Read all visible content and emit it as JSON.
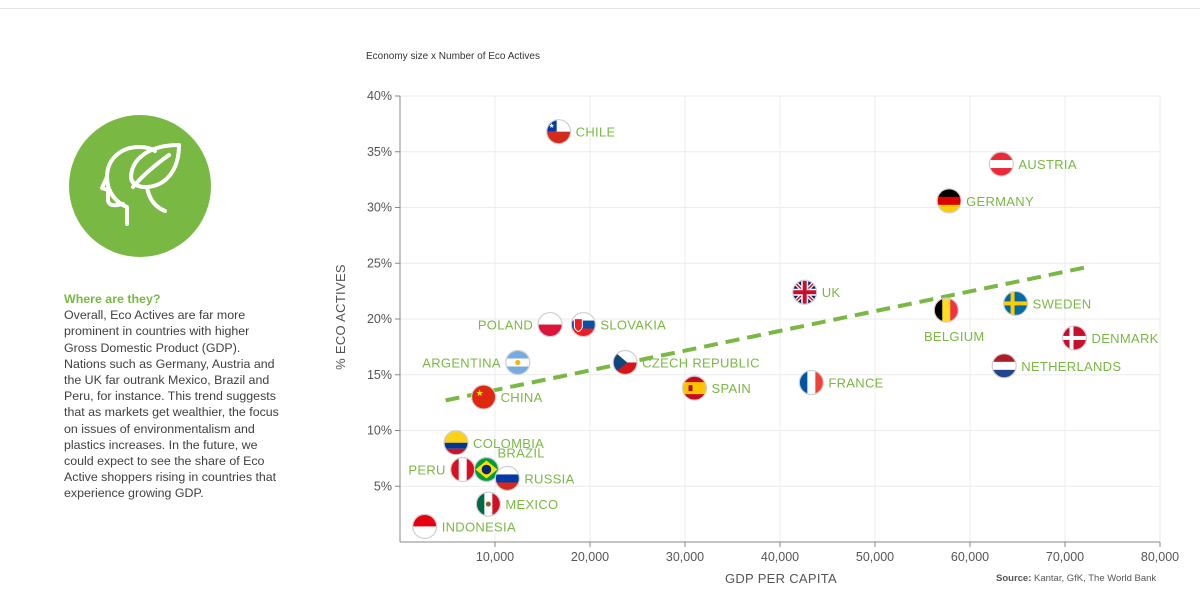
{
  "sidebar": {
    "heading": "Where are they?",
    "body": "Overall, Eco Actives are far more prominent in countries with higher Gross Domestic Product (GDP). Nations such as Germany, Austria and the UK far outrank Mexico, Brazil and Peru, for instance. This trend suggests that as markets get wealthier, the focus on issues of environmentalism and plastics increases. In the future, we could expect to see the share of Eco Active shoppers rising in countries that experience growing GDP.",
    "icon": "head-leaf-icon",
    "accent": "#7ab844"
  },
  "chart_subtitle": "Economy size x Number of Eco Actives",
  "source": {
    "prefix": "Source:",
    "text": " Kantar, GfK, The World Bank"
  },
  "chart_data": {
    "type": "scatter",
    "xlabel": "GDP PER CAPITA",
    "ylabel": "% ECO ACTIVES",
    "xlim": [
      0,
      80000
    ],
    "ylim": [
      0,
      40
    ],
    "xticks": [
      10000,
      20000,
      30000,
      40000,
      50000,
      60000,
      70000,
      80000
    ],
    "xtick_labels": [
      "10,000",
      "20,000",
      "30,000",
      "40,000",
      "50,000",
      "60,000",
      "70,000",
      "80,000"
    ],
    "yticks": [
      5,
      10,
      15,
      20,
      25,
      30,
      35,
      40
    ],
    "ytick_labels": [
      "5%",
      "10%",
      "15%",
      "20%",
      "25%",
      "30%",
      "35%",
      "40%"
    ],
    "grid": true,
    "trendline": {
      "x": [
        4800,
        72000
      ],
      "y": [
        12.7,
        24.6
      ],
      "color": "#7ab844",
      "style": "dashed"
    },
    "label_color": "#7ab844",
    "points": [
      {
        "label": "CHILE",
        "x": 16700,
        "y": 36.8,
        "flag": "chile",
        "label_side": "right"
      },
      {
        "label": "AUSTRIA",
        "x": 63300,
        "y": 33.9,
        "flag": "austria",
        "label_side": "right"
      },
      {
        "label": "GERMANY",
        "x": 57800,
        "y": 30.6,
        "flag": "germany",
        "label_side": "right"
      },
      {
        "label": "UK",
        "x": 42600,
        "y": 22.4,
        "flag": "uk",
        "label_side": "right"
      },
      {
        "label": "BELGIUM",
        "x": 57500,
        "y": 20.8,
        "flag": "belgium",
        "label_side": "below"
      },
      {
        "label": "SWEDEN",
        "x": 64800,
        "y": 21.4,
        "flag": "sweden",
        "label_side": "right"
      },
      {
        "label": "DENMARK",
        "x": 71000,
        "y": 18.3,
        "flag": "denmark",
        "label_side": "right"
      },
      {
        "label": "NETHERLANDS",
        "x": 63600,
        "y": 15.8,
        "flag": "netherlands",
        "label_side": "right"
      },
      {
        "label": "FRANCE",
        "x": 43300,
        "y": 14.3,
        "flag": "france",
        "label_side": "right"
      },
      {
        "label": "SPAIN",
        "x": 31000,
        "y": 13.8,
        "flag": "spain",
        "label_side": "right"
      },
      {
        "label": "CZECH REPUBLIC",
        "x": 23700,
        "y": 16.1,
        "flag": "czech",
        "label_side": "right"
      },
      {
        "label": "POLAND",
        "x": 15800,
        "y": 19.5,
        "flag": "poland",
        "label_side": "left"
      },
      {
        "label": "SLOVAKIA",
        "x": 19300,
        "y": 19.5,
        "flag": "slovakia",
        "label_side": "right"
      },
      {
        "label": "ARGENTINA",
        "x": 12400,
        "y": 16.1,
        "flag": "argentina",
        "label_side": "left"
      },
      {
        "label": "CHINA",
        "x": 8800,
        "y": 13.0,
        "flag": "china",
        "label_side": "right"
      },
      {
        "label": "COLOMBIA",
        "x": 5900,
        "y": 8.9,
        "flag": "colombia",
        "label_side": "right"
      },
      {
        "label": "PERU",
        "x": 6600,
        "y": 6.5,
        "flag": "peru",
        "label_side": "left"
      },
      {
        "label": "BRAZIL",
        "x": 9100,
        "y": 6.5,
        "flag": "brazil",
        "label_side": "above-right"
      },
      {
        "label": "RUSSIA",
        "x": 11300,
        "y": 5.7,
        "flag": "russia",
        "label_side": "right"
      },
      {
        "label": "MEXICO",
        "x": 9300,
        "y": 3.4,
        "flag": "mexico",
        "label_side": "right"
      },
      {
        "label": "INDONESIA",
        "x": 2600,
        "y": 1.4,
        "flag": "indonesia",
        "label_side": "right"
      }
    ]
  }
}
